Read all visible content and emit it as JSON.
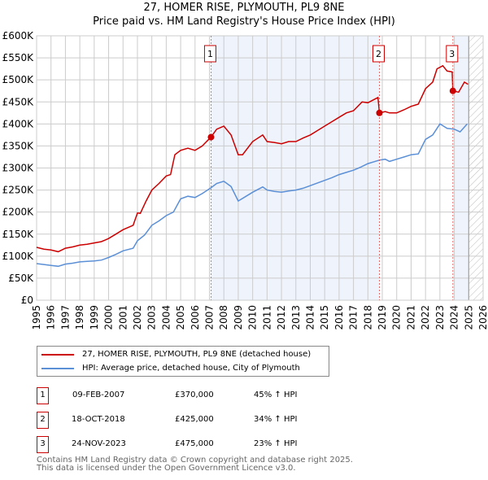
{
  "title": "27, HOMER RISE, PLYMOUTH, PL9 8NE",
  "subtitle": "Price paid vs. HM Land Registry's House Price Index (HPI)",
  "chart_data": {
    "type": "line",
    "xlim": [
      1995,
      2026
    ],
    "ylim": [
      0,
      600000
    ],
    "x_ticks": [
      "1995",
      "1996",
      "1997",
      "1998",
      "1999",
      "2000",
      "2001",
      "2002",
      "2003",
      "2004",
      "2005",
      "2006",
      "2007",
      "2008",
      "2009",
      "2010",
      "2011",
      "2012",
      "2013",
      "2014",
      "2015",
      "2016",
      "2017",
      "2018",
      "2019",
      "2020",
      "2021",
      "2022",
      "2023",
      "2024",
      "2025",
      "2026"
    ],
    "y_ticks": [
      0,
      50000,
      100000,
      150000,
      200000,
      250000,
      300000,
      350000,
      400000,
      450000,
      500000,
      550000,
      600000
    ],
    "y_tick_labels": [
      "£0",
      "£50K",
      "£100K",
      "£150K",
      "£200K",
      "£250K",
      "£300K",
      "£350K",
      "£400K",
      "£450K",
      "£500K",
      "£550K",
      "£600K"
    ],
    "grid": true,
    "colors": {
      "property": "#cc0000",
      "hpi": "#5b8fd6",
      "shade": "#eef3fc"
    },
    "series": [
      {
        "name": "27, HOMER RISE, PLYMOUTH, PL9 8NE (detached house)",
        "x": [
          1995,
          1995.5,
          1996,
          1996.5,
          1997,
          1997.5,
          1998,
          1998.5,
          1999,
          1999.5,
          2000,
          2000.5,
          2001,
          2001.7,
          2002,
          2002.2,
          2002.6,
          2003,
          2003.5,
          2004,
          2004.3,
          2004.6,
          2005,
          2005.5,
          2006,
          2006.5,
          2007.1,
          2007.5,
          2008,
          2008.5,
          2009,
          2009.3,
          2010,
          2010.7,
          2011,
          2011.5,
          2012,
          2012.5,
          2013,
          2013.5,
          2014,
          2014.5,
          2015,
          2015.5,
          2016,
          2016.5,
          2017,
          2017.6,
          2018,
          2018.7,
          2018.8,
          2019.2,
          2019.5,
          2020,
          2020.5,
          2021,
          2021.5,
          2022,
          2022.5,
          2022.8,
          2023.2,
          2023.5,
          2023.85,
          2023.9,
          2024.3,
          2024.7,
          2024.95
        ],
        "values": [
          120000,
          116000,
          114000,
          110000,
          118000,
          121000,
          125000,
          127000,
          130000,
          133000,
          140000,
          150000,
          160000,
          170000,
          198000,
          197000,
          225000,
          250000,
          265000,
          282000,
          285000,
          330000,
          340000,
          345000,
          340000,
          350000,
          370000,
          388000,
          395000,
          375000,
          330000,
          330000,
          360000,
          375000,
          360000,
          358000,
          355000,
          360000,
          360000,
          368000,
          375000,
          385000,
          395000,
          405000,
          415000,
          425000,
          430000,
          450000,
          448000,
          460000,
          425000,
          428000,
          425000,
          425000,
          432000,
          440000,
          445000,
          480000,
          495000,
          525000,
          532000,
          520000,
          518000,
          475000,
          472000,
          495000,
          490000
        ]
      },
      {
        "name": "HPI: Average price, detached house, City of Plymouth",
        "x": [
          1995,
          1995.5,
          1996,
          1996.5,
          1997,
          1997.5,
          1998,
          1998.5,
          1999,
          1999.5,
          2000,
          2000.5,
          2001,
          2001.7,
          2002,
          2002.5,
          2003,
          2003.5,
          2004,
          2004.5,
          2005,
          2005.5,
          2006,
          2006.5,
          2007.1,
          2007.5,
          2008,
          2008.5,
          2009,
          2009.5,
          2010,
          2010.7,
          2011,
          2011.5,
          2012,
          2012.5,
          2013,
          2013.5,
          2014,
          2014.5,
          2015,
          2015.5,
          2016,
          2016.5,
          2017,
          2017.5,
          2018,
          2018.8,
          2019.2,
          2019.5,
          2020,
          2020.5,
          2021,
          2021.5,
          2022,
          2022.5,
          2023,
          2023.5,
          2024,
          2024.4,
          2024.9
        ],
        "values": [
          83000,
          81000,
          79000,
          77000,
          82000,
          84000,
          87000,
          88000,
          89000,
          91000,
          97000,
          104000,
          112000,
          118000,
          135000,
          148000,
          170000,
          180000,
          192000,
          200000,
          230000,
          236000,
          233000,
          242000,
          255000,
          265000,
          270000,
          258000,
          225000,
          235000,
          245000,
          257000,
          250000,
          247000,
          245000,
          248000,
          250000,
          254000,
          260000,
          266000,
          272000,
          278000,
          285000,
          290000,
          295000,
          302000,
          310000,
          318000,
          320000,
          315000,
          320000,
          325000,
          330000,
          332000,
          365000,
          375000,
          400000,
          390000,
          388000,
          382000,
          400000
        ]
      }
    ],
    "sales": [
      {
        "label": "1",
        "x": 2007.11,
        "value": 370000,
        "date": "09-FEB-2007",
        "price": "£370,000",
        "hpi": "45% ↑ HPI"
      },
      {
        "label": "2",
        "x": 2018.8,
        "value": 425000,
        "date": "18-OCT-2018",
        "price": "£425,000",
        "hpi": "34% ↑ HPI"
      },
      {
        "label": "3",
        "x": 2023.9,
        "value": 475000,
        "date": "24-NOV-2023",
        "price": "£475,000",
        "hpi": "23% ↑ HPI"
      }
    ],
    "shaded_ranges": [
      [
        2007.11,
        2018.8
      ],
      [
        2023.9,
        2025.0
      ]
    ],
    "forecast_hatch_from": 2025.0,
    "legend_placement": "below"
  },
  "legend": {
    "property": "27, HOMER RISE, PLYMOUTH, PL9 8NE (detached house)",
    "hpi": "HPI: Average price, detached house, City of Plymouth"
  },
  "footer": {
    "line1": "Contains HM Land Registry data © Crown copyright and database right 2025.",
    "line2": "This data is licensed under the Open Government Licence v3.0."
  }
}
